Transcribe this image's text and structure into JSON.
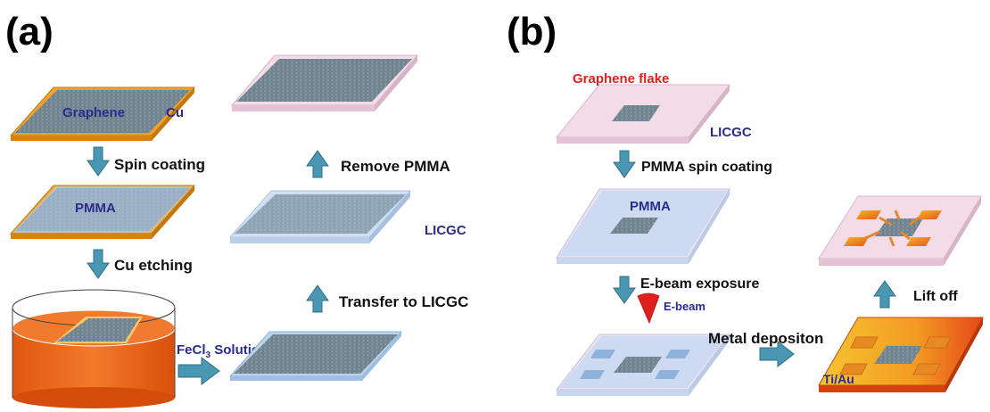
{
  "panel_a": {
    "tag": "(a)",
    "graphene_label": "Graphene",
    "cu_label": "Cu",
    "step_spin": "Spin coating",
    "pmma_label": "PMMA",
    "step_etch": "Cu etching",
    "fecl3_prefix": "FeCl",
    "fecl3_sub": "3",
    "fecl3_suffix": " Solution",
    "step_remove": "Remove PMMA",
    "licgc_label": "LICGC",
    "step_transfer": "Transfer to LICGC"
  },
  "panel_b": {
    "tag": "(b)",
    "flake_label": "Graphene flake",
    "licgc_label": "LICGC",
    "step_pmma": "PMMA spin coating",
    "pmma_label": "PMMA",
    "step_ebeam": "E-beam exposure",
    "ebeam_label": "E-beam",
    "step_metal": "Metal depositon",
    "step_liftoff": "Lift off",
    "tiau_label": "Ti/Au"
  },
  "colors": {
    "arrow": "#4a97b3",
    "arrow_edge": "#2f6f86",
    "copper": "#f4a62a",
    "graphene": "#7a8f9a",
    "pmma": "#bcd3ee",
    "licgc": "#f3dbe8",
    "solution": "#ef6a1c",
    "label_blue": "#2b2b8c",
    "label_red": "#e0201e",
    "metal_edge": "#e04a10"
  }
}
